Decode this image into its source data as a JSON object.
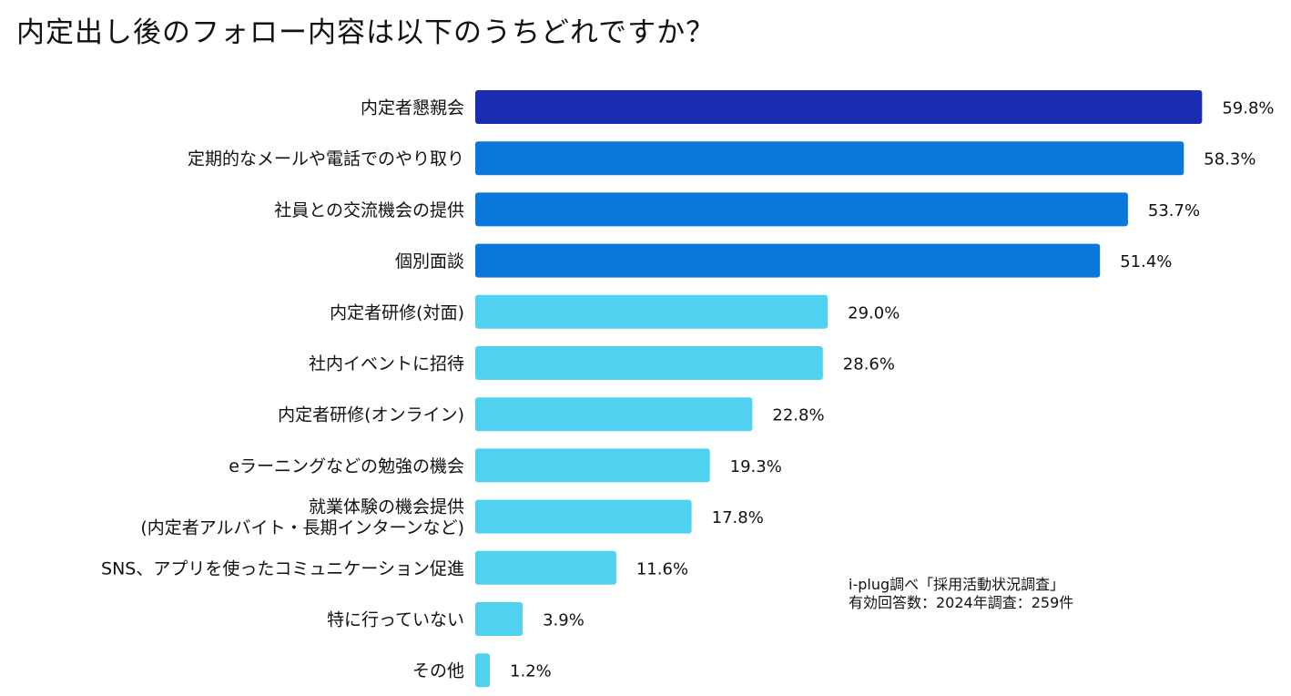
{
  "title": "内定出し後のフォロー内容は以下のうちどれですか？",
  "source": {
    "line1": "i-plug調べ「採用活動状況調査」",
    "line2": "有効回答数：2024年調査：259件"
  },
  "colors": {
    "top": "#1a2db0",
    "high": "#0a78d8",
    "low": "#4fd1ef"
  },
  "chart_data": {
    "type": "bar",
    "orientation": "horizontal",
    "title": "内定出し後のフォロー内容は以下のうちどれですか？",
    "unit": "%",
    "xlim": [
      0,
      60
    ],
    "categories": [
      [
        "内定者懇親会"
      ],
      [
        "定期的なメールや電話でのやり取り"
      ],
      [
        "社員との交流機会の提供"
      ],
      [
        "個別面談"
      ],
      [
        "内定者研修(対面)"
      ],
      [
        "社内イベントに招待"
      ],
      [
        "内定者研修(オンライン)"
      ],
      [
        "eラーニングなどの勉強の機会"
      ],
      [
        "就業体験の機会提供",
        "(内定者アルバイト・長期インターンなど)"
      ],
      [
        "SNS、アプリを使ったコミュニケーション促進"
      ],
      [
        "特に行っていない"
      ],
      [
        "その他"
      ]
    ],
    "values": [
      59.8,
      58.3,
      53.7,
      51.4,
      29.0,
      28.6,
      22.8,
      19.3,
      17.8,
      11.6,
      3.9,
      1.2
    ],
    "value_labels": [
      "59.8%",
      "58.3%",
      "53.7%",
      "51.4%",
      "29.0%",
      "28.6%",
      "22.8%",
      "19.3%",
      "17.8%",
      "11.6%",
      "3.9%",
      "1.2%"
    ],
    "color_groups": [
      "top",
      "high",
      "high",
      "high",
      "low",
      "low",
      "low",
      "low",
      "low",
      "low",
      "low",
      "low"
    ]
  }
}
